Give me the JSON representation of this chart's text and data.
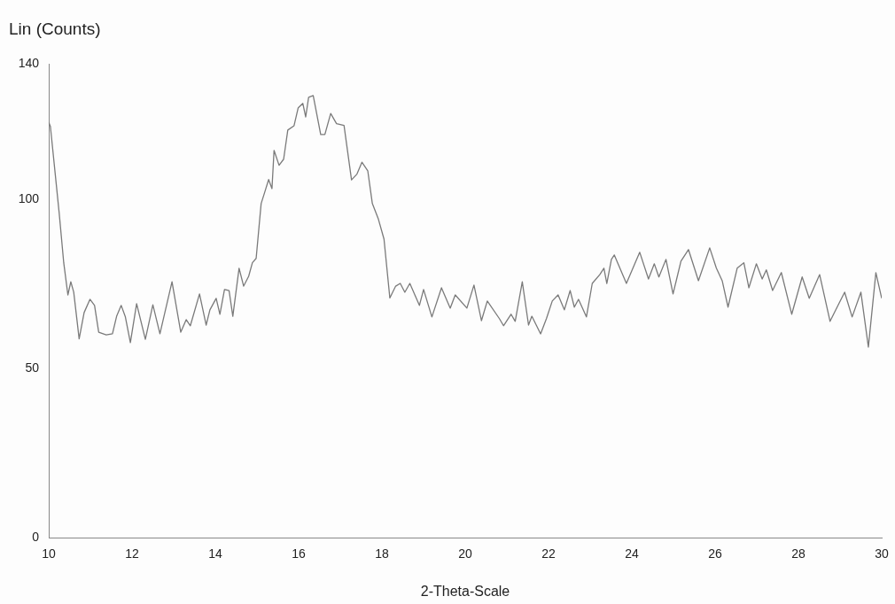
{
  "chart_data": {
    "type": "line",
    "xlabel": "2-Theta-Scale",
    "ylabel": "Lin (Counts)",
    "xlim": [
      10,
      30
    ],
    "ylim": [
      0,
      140
    ],
    "xticks": [
      10,
      12,
      14,
      16,
      18,
      20,
      22,
      24,
      26,
      28,
      30
    ],
    "yticks": [
      0,
      50,
      100,
      140
    ],
    "grid": false,
    "legend": false,
    "marker": "none",
    "line_style": "solid",
    "series": [
      {
        "color": "#7a7a7a",
        "x": [
          10.0,
          10.04,
          10.25,
          10.36,
          10.46,
          10.53,
          10.6,
          10.73,
          10.85,
          10.99,
          11.1,
          11.2,
          11.38,
          11.53,
          11.63,
          11.74,
          11.84,
          11.96,
          12.11,
          12.32,
          12.5,
          12.67,
          12.96,
          13.17,
          13.3,
          13.4,
          13.62,
          13.78,
          13.87,
          14.02,
          14.11,
          14.22,
          14.33,
          14.42,
          14.57,
          14.68,
          14.8,
          14.89,
          14.98,
          15.1,
          15.2,
          15.28,
          15.36,
          15.41,
          15.53,
          15.64,
          15.74,
          15.89,
          15.99,
          16.1,
          16.17,
          16.24,
          16.35,
          16.53,
          16.63,
          16.77,
          16.91,
          17.09,
          17.27,
          17.4,
          17.52,
          17.66,
          17.77,
          17.91,
          18.05,
          18.19,
          18.33,
          18.44,
          18.55,
          18.67,
          18.9,
          19.0,
          19.2,
          19.43,
          19.64,
          19.76,
          20.04,
          20.21,
          20.39,
          20.53,
          20.82,
          20.92,
          21.1,
          21.2,
          21.37,
          21.52,
          21.6,
          21.81,
          21.95,
          22.09,
          22.23,
          22.38,
          22.52,
          22.62,
          22.72,
          22.91,
          23.05,
          23.23,
          23.33,
          23.4,
          23.51,
          23.58,
          23.87,
          24.19,
          24.4,
          24.54,
          24.65,
          24.82,
          24.99,
          25.18,
          25.36,
          25.6,
          25.87,
          26.03,
          26.17,
          26.31,
          26.53,
          26.69,
          26.81,
          26.99,
          27.13,
          27.23,
          27.38,
          27.59,
          27.84,
          28.09,
          28.26,
          28.51,
          28.76,
          28.97,
          29.11,
          29.29,
          29.5,
          29.68,
          29.86,
          30.0
        ],
        "values": [
          122.7,
          121.5,
          96,
          81.2,
          71.7,
          75.6,
          72.5,
          58.7,
          66.5,
          70.4,
          68.6,
          60.7,
          59.9,
          60.2,
          65.4,
          68.6,
          65.2,
          57.6,
          69.1,
          58.6,
          68.8,
          60.2,
          75.6,
          60.7,
          64.4,
          62.6,
          72,
          62.8,
          67.3,
          70.7,
          66,
          73.3,
          73,
          65.4,
          79.6,
          74.3,
          77.2,
          81.2,
          82.5,
          98.7,
          102.6,
          105.8,
          103.1,
          114.4,
          110,
          111.8,
          120.4,
          121.7,
          127,
          128.3,
          124.3,
          130.1,
          130.6,
          119.1,
          119.1,
          125.3,
          122.3,
          121.8,
          105.7,
          107.4,
          110.9,
          108.4,
          98.7,
          94.3,
          88.2,
          70.8,
          74.3,
          75.1,
          72.5,
          75.1,
          68.6,
          73.3,
          65.2,
          73.8,
          67.8,
          71.7,
          67.8,
          74.6,
          64.1,
          69.9,
          64.7,
          62.6,
          66,
          63.9,
          75.6,
          62.8,
          65.4,
          60.2,
          64.7,
          69.9,
          71.7,
          67.3,
          73,
          68.1,
          70.4,
          65.2,
          75.1,
          77.7,
          79.6,
          75.1,
          82.2,
          83.5,
          75.1,
          84.3,
          76.4,
          80.9,
          77,
          82.2,
          72,
          81.7,
          85.1,
          75.9,
          85.6,
          79.6,
          75.9,
          68.1,
          79.6,
          81.2,
          73.8,
          80.9,
          76.4,
          79.1,
          73,
          78.3,
          66,
          77,
          70.7,
          77.7,
          63.9,
          69.1,
          72.5,
          65.2,
          72.5,
          56.3,
          78.3,
          70.7
        ]
      }
    ]
  }
}
